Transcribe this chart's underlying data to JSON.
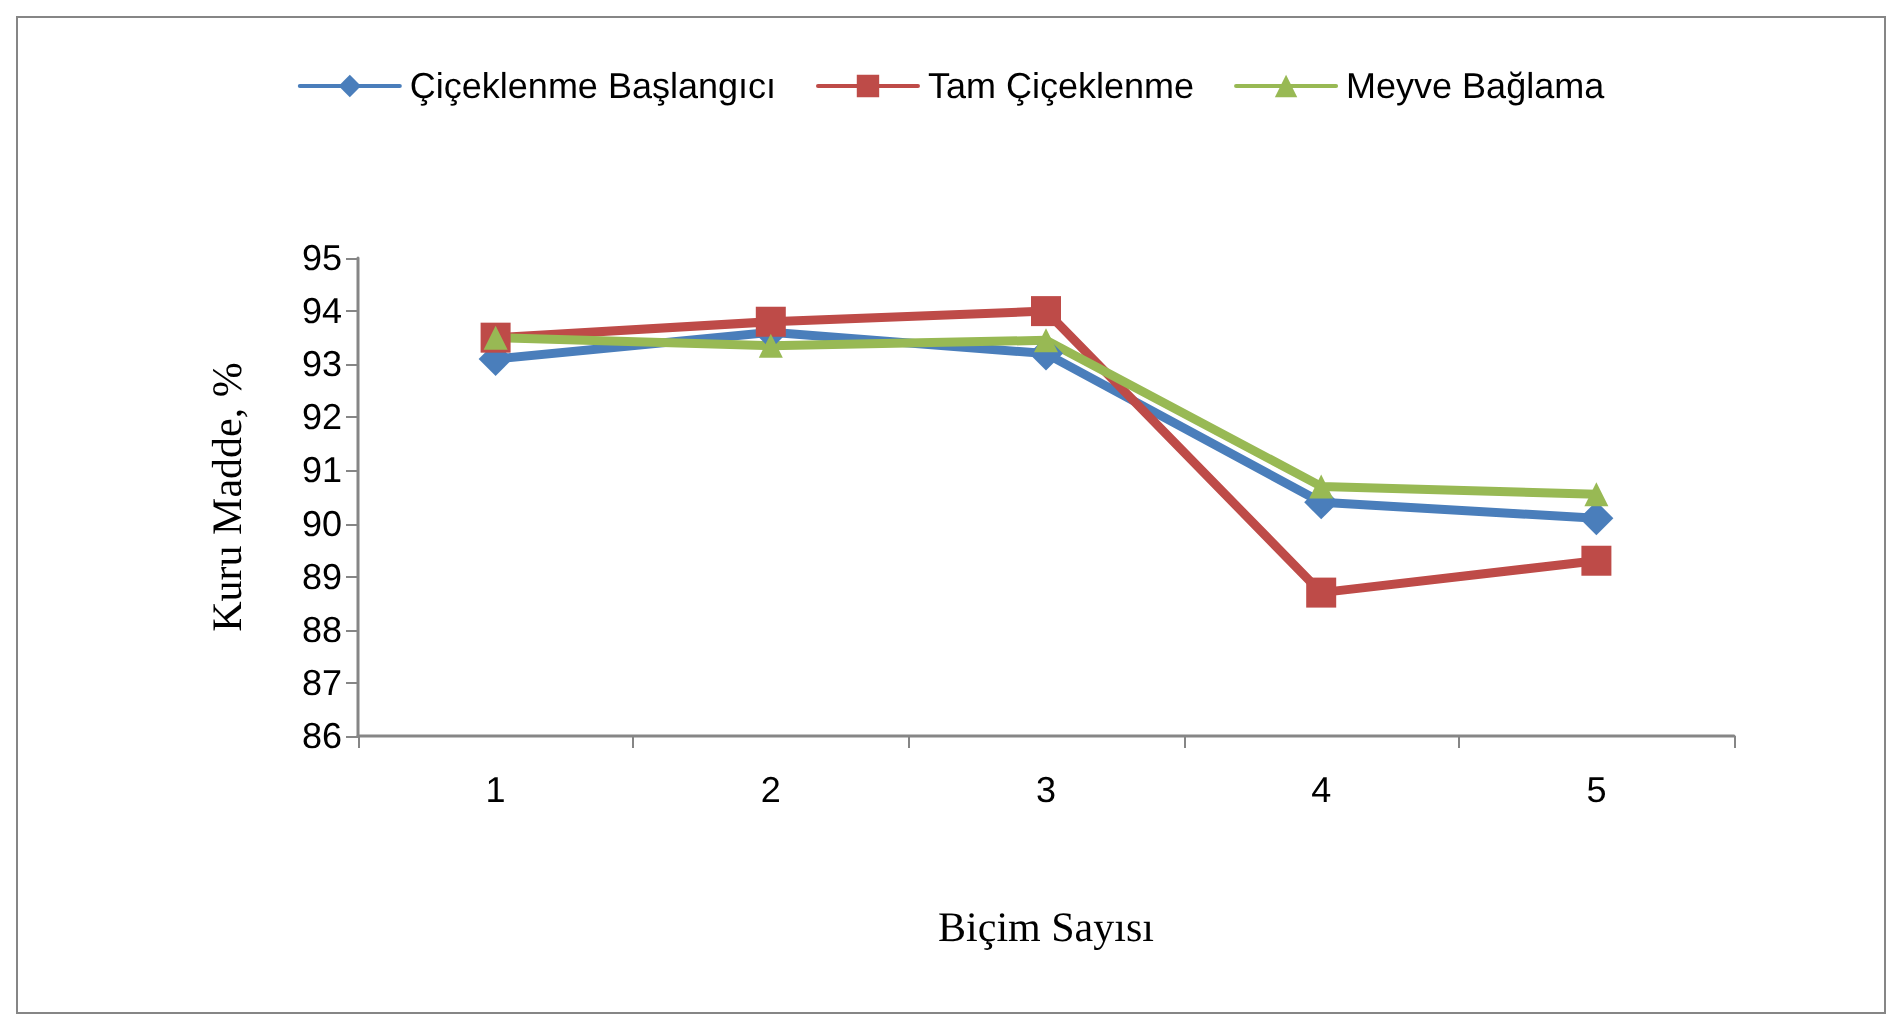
{
  "chart_data": {
    "type": "line",
    "xlabel": "Biçim Sayısı",
    "ylabel": "Kuru Madde, %",
    "categories": [
      "1",
      "2",
      "3",
      "4",
      "5"
    ],
    "ylim": [
      86,
      95
    ],
    "yticks": [
      86,
      87,
      88,
      89,
      90,
      91,
      92,
      93,
      94,
      95
    ],
    "grid": false,
    "legend": "top",
    "line_style": "solid",
    "series": [
      {
        "name": "Çiçeklenme Başlangıcı",
        "color": "#4a7ebb",
        "marker": "diamond",
        "values": [
          93.1,
          93.6,
          93.2,
          90.4,
          90.1
        ]
      },
      {
        "name": "Tam Çiçeklenme",
        "color": "#be4b48",
        "marker": "square",
        "values": [
          93.5,
          93.8,
          94.0,
          88.7,
          89.3
        ]
      },
      {
        "name": "Meyve Bağlama",
        "color": "#98b954",
        "marker": "triangle",
        "values": [
          93.5,
          93.35,
          93.45,
          90.7,
          90.55
        ]
      }
    ]
  }
}
